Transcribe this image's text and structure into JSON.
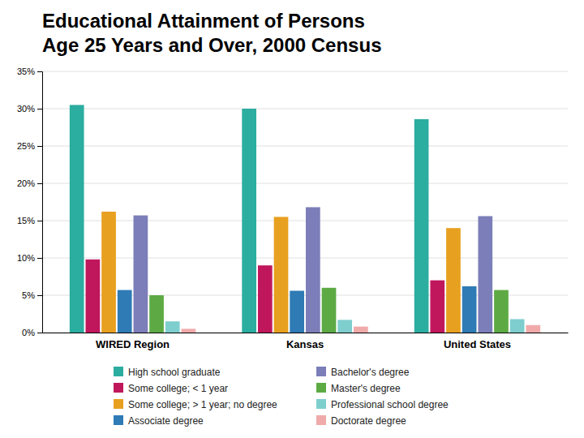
{
  "chart_data": {
    "type": "bar",
    "title": "Educational Attainment of Persons",
    "subtitle": "Age 25 Years and Over, 2000 Census",
    "categories": [
      "WIRED Region",
      "Kansas",
      "United States"
    ],
    "series": [
      {
        "name": "High school graduate",
        "color": "#2BADA0",
        "values": [
          30.5,
          30.0,
          28.6
        ]
      },
      {
        "name": "Some college; < 1 year",
        "color": "#C0175C",
        "values": [
          9.8,
          9.0,
          7.0
        ]
      },
      {
        "name": "Some college; > 1 year; no degree",
        "color": "#E8A020",
        "values": [
          16.2,
          15.5,
          14.0
        ]
      },
      {
        "name": "Associate degree",
        "color": "#2E7BB5",
        "values": [
          5.7,
          5.6,
          6.2
        ]
      },
      {
        "name": "Bachelor's degree",
        "color": "#7B7EB8",
        "values": [
          15.7,
          16.8,
          15.6
        ]
      },
      {
        "name": "Master's degree",
        "color": "#5DAA45",
        "values": [
          5.0,
          6.0,
          5.7
        ]
      },
      {
        "name": "Professional school degree",
        "color": "#7ECECE",
        "values": [
          1.5,
          1.7,
          1.8
        ]
      },
      {
        "name": "Doctorate degree",
        "color": "#F0AAAA",
        "values": [
          0.5,
          0.8,
          1.0
        ]
      }
    ],
    "ylim": [
      0,
      35
    ],
    "yticks": [
      {
        "value": 0,
        "label": "0%"
      },
      {
        "value": 5,
        "label": "5%"
      },
      {
        "value": 10,
        "label": "10%"
      },
      {
        "value": 15,
        "label": "15%"
      },
      {
        "value": 20,
        "label": "20%"
      },
      {
        "value": 25,
        "label": "25%"
      },
      {
        "value": 30,
        "label": "30%"
      },
      {
        "value": 35,
        "label": "35%"
      }
    ],
    "grid": true,
    "legend": "bottom"
  }
}
